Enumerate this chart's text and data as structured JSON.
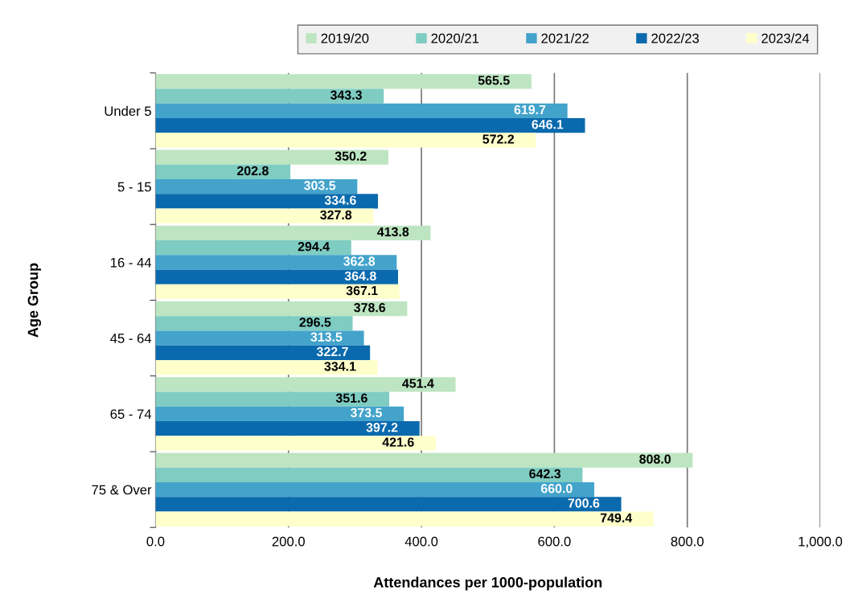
{
  "chart_data": {
    "type": "bar",
    "orientation": "horizontal",
    "ylabel": "Age Group",
    "xlabel": "Attendances per 1000-population",
    "categories": [
      "Under 5",
      "5 - 15",
      "16 - 44",
      "45 - 64",
      "65 - 74",
      "75 & Over"
    ],
    "series": [
      {
        "name": "2019/20",
        "color": "#bde5c1",
        "values": [
          565.5,
          350.2,
          413.8,
          378.6,
          451.4,
          808.0
        ],
        "value_labels": [
          "565.5",
          "350.2",
          "413.8",
          "378.6",
          "451.4",
          "808.0"
        ]
      },
      {
        "name": "2020/21",
        "color": "#7fccc2",
        "values": [
          343.3,
          202.8,
          294.4,
          296.5,
          351.6,
          642.3
        ],
        "value_labels": [
          "343.3",
          "202.8",
          "294.4",
          "296.5",
          "351.6",
          "642.3"
        ]
      },
      {
        "name": "2021/22",
        "color": "#43a3cb",
        "values": [
          619.7,
          303.5,
          362.8,
          313.5,
          373.5,
          660.0
        ],
        "value_labels": [
          "619.7",
          "303.5",
          "362.8",
          "313.5",
          "373.5",
          "660.0"
        ]
      },
      {
        "name": "2022/23",
        "color": "#0a6aad",
        "values": [
          646.1,
          334.6,
          364.8,
          322.7,
          397.2,
          700.6
        ],
        "value_labels": [
          "646.1",
          "334.6",
          "364.8",
          "322.7",
          "397.2",
          "700.6"
        ]
      },
      {
        "name": "2023/24",
        "color": "#ffffcc",
        "values": [
          572.2,
          327.8,
          367.1,
          334.1,
          421.6,
          749.4
        ],
        "value_labels": [
          "572.2",
          "327.8",
          "367.1",
          "334.1",
          "421.6",
          "749.4"
        ]
      }
    ],
    "xlim": [
      0,
      1000
    ],
    "xticks": [
      {
        "value": 0,
        "label": "0.0"
      },
      {
        "value": 200,
        "label": "200.0"
      },
      {
        "value": 400,
        "label": "400.0"
      },
      {
        "value": 600,
        "label": "600.0"
      },
      {
        "value": 800,
        "label": "800.0"
      },
      {
        "value": 1000,
        "label": "1,000.0"
      }
    ],
    "grid": "x",
    "legend": "top"
  }
}
